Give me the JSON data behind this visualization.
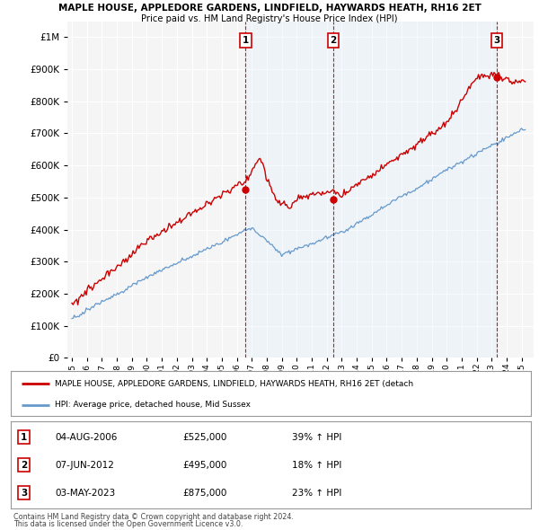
{
  "title1": "MAPLE HOUSE, APPLEDORE GARDENS, LINDFIELD, HAYWARDS HEATH, RH16 2ET",
  "title2": "Price paid vs. HM Land Registry's House Price Index (HPI)",
  "background_color": "#ffffff",
  "plot_bg_color": "#f5f5f5",
  "grid_color": "#ffffff",
  "red_color": "#cc0000",
  "blue_color": "#6699cc",
  "shade_color": "#ddeeff",
  "sale_dates": [
    2006.59,
    2012.43,
    2023.33
  ],
  "sale_prices": [
    525000,
    495000,
    875000
  ],
  "sale_labels": [
    "1",
    "2",
    "3"
  ],
  "legend_red": "MAPLE HOUSE, APPLEDORE GARDENS, LINDFIELD, HAYWARDS HEATH, RH16 2ET (detach",
  "legend_blue": "HPI: Average price, detached house, Mid Sussex",
  "table_data": [
    [
      "1",
      "04-AUG-2006",
      "£525,000",
      "39% ↑ HPI"
    ],
    [
      "2",
      "07-JUN-2012",
      "£495,000",
      "18% ↑ HPI"
    ],
    [
      "3",
      "03-MAY-2023",
      "£875,000",
      "23% ↑ HPI"
    ]
  ],
  "footnote1": "Contains HM Land Registry data © Crown copyright and database right 2024.",
  "footnote2": "This data is licensed under the Open Government Licence v3.0.",
  "ylim": [
    0,
    1050000
  ],
  "yticks": [
    0,
    100000,
    200000,
    300000,
    400000,
    500000,
    600000,
    700000,
    800000,
    900000,
    1000000
  ],
  "xlim_start": 1994.7,
  "xlim_end": 2025.8
}
